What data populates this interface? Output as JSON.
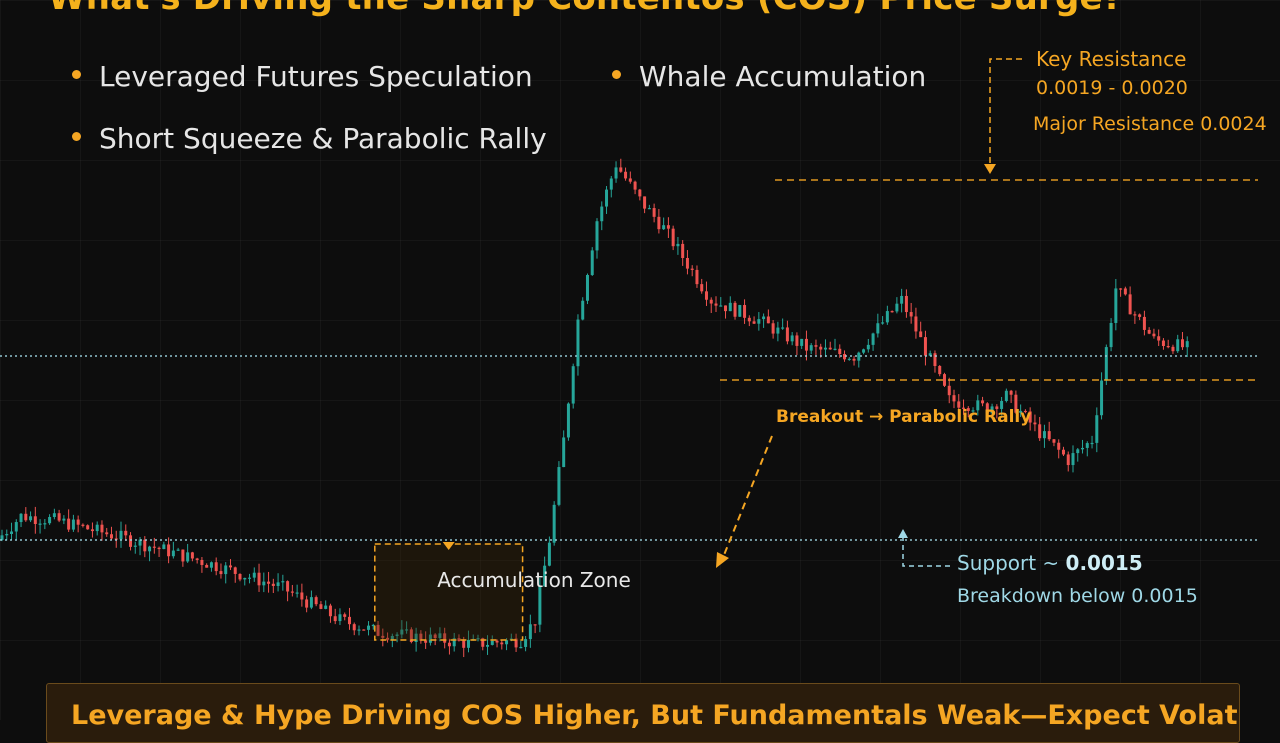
{
  "title": "What's Driving the Sharp Contentos (COS) Price Surge?",
  "bullets": [
    "Leveraged Futures Speculation",
    "Whale Accumulation",
    "Short Squeeze & Parabolic Rally"
  ],
  "annotations": {
    "key_resistance_title": "Key Resistance",
    "key_resistance_range": "0.0019 - 0.0020",
    "major_resistance": "Major Resistance 0.0024",
    "breakout": "Breakout → Parabolic Rally",
    "accumulation_zone": "Accumulation Zone",
    "support_prefix": "Support ~ ",
    "support_value": "0.0015",
    "breakdown": "Breakdown below 0.0015"
  },
  "banner": "Leverage & Hype Driving COS Higher, But Fundamentals Weak—Expect Volatility",
  "colors": {
    "up": "#26a69a",
    "down": "#ef5350",
    "accent": "#f5a623",
    "support": "#9fd8e6",
    "background": "#0d0d0d"
  },
  "chart_data": {
    "type": "line",
    "ylim": [
      0.001,
      0.0027
    ],
    "x": [
      0,
      5,
      12,
      25,
      45,
      60,
      72,
      80,
      100,
      110,
      113,
      116,
      119,
      122,
      126,
      130,
      135,
      140,
      150,
      160,
      170,
      180,
      190,
      200,
      208,
      212,
      218,
      225,
      230,
      235,
      243,
      250
    ],
    "values": [
      0.0015,
      0.00156,
      0.00155,
      0.00151,
      0.00144,
      0.00138,
      0.0013,
      0.00127,
      0.00124,
      0.00125,
      0.0013,
      0.0015,
      0.00175,
      0.00205,
      0.0023,
      0.00244,
      0.00235,
      0.00228,
      0.0021,
      0.00205,
      0.00198,
      0.00196,
      0.0021,
      0.00185,
      0.00183,
      0.00186,
      0.00178,
      0.0017,
      0.00175,
      0.00213,
      0.002,
      0.00198
    ],
    "reference_lines": [
      {
        "value": 0.0024,
        "style": "dashed"
      },
      {
        "value": 0.0019,
        "style": "dashed"
      },
      {
        "value": 0.00196,
        "style": "dotted"
      },
      {
        "value": 0.0015,
        "style": "dotted"
      }
    ],
    "accumulation_zone": {
      "x": [
        80,
        110
      ],
      "y": [
        0.00125,
        0.00149
      ]
    }
  }
}
